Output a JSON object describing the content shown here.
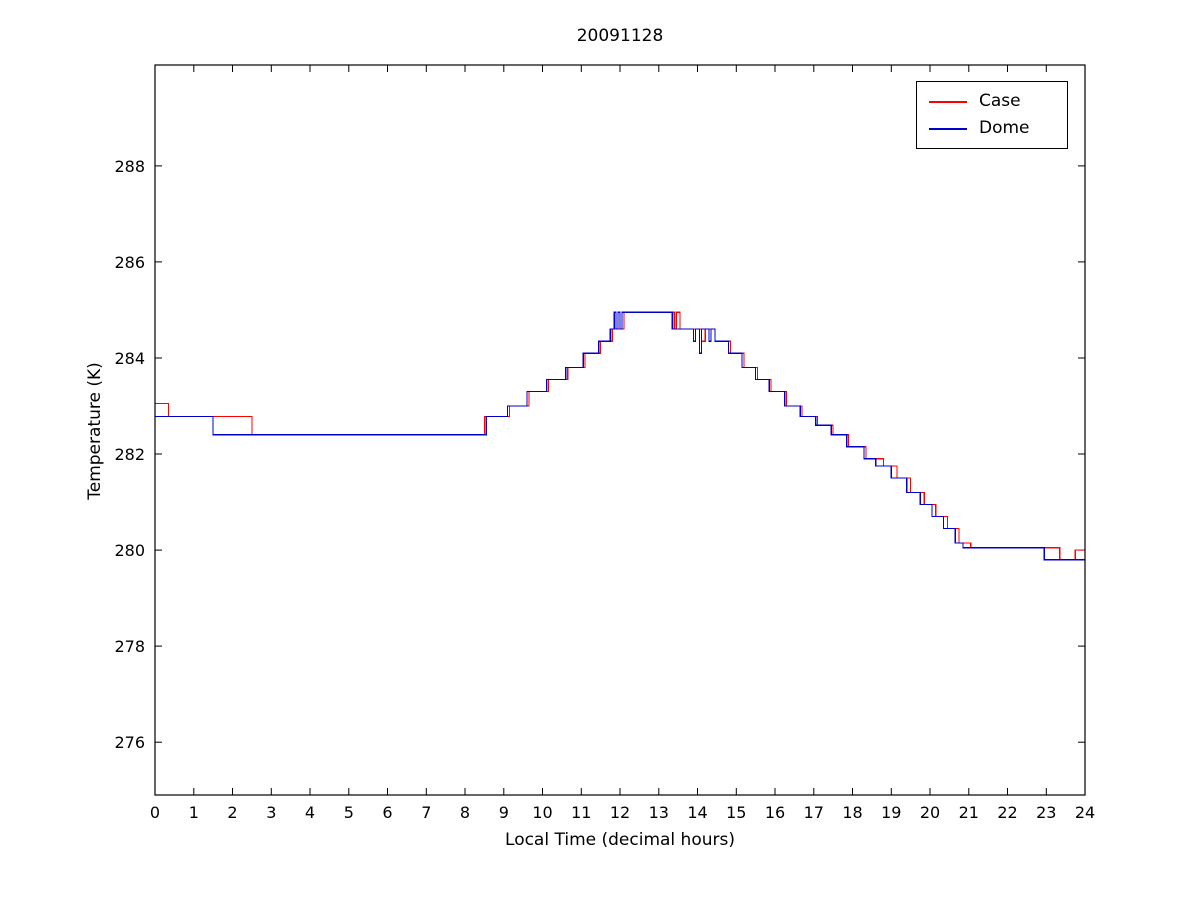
{
  "figure": {
    "title": "20091128",
    "xlabel": "Local Time (decimal hours)",
    "ylabel": "Temperature (K)",
    "background_color": "#ffffff",
    "axes_color": "#000000",
    "legend": [
      {
        "label": "Case",
        "color": "#ff0000"
      },
      {
        "label": "Dome",
        "color": "#0000cc"
      }
    ]
  },
  "chart_data": {
    "type": "line",
    "step": true,
    "title": "20091128",
    "xlabel": "Local Time (decimal hours)",
    "ylabel": "Temperature (K)",
    "xlim": [
      0,
      24
    ],
    "ylim": [
      274.9,
      290.1
    ],
    "xticks": [
      0,
      1,
      2,
      3,
      4,
      5,
      6,
      7,
      8,
      9,
      10,
      11,
      12,
      13,
      14,
      15,
      16,
      17,
      18,
      19,
      20,
      21,
      22,
      23,
      24
    ],
    "yticks": [
      276,
      278,
      280,
      282,
      284,
      286,
      288
    ],
    "grid": false,
    "legend_position": "top-right",
    "series": [
      {
        "name": "Case",
        "color": "#ff0000",
        "points": [
          [
            0,
            283.05
          ],
          [
            0.35,
            282.78
          ],
          [
            2.5,
            282.4
          ],
          [
            8.5,
            282.78
          ],
          [
            9.15,
            283.0
          ],
          [
            9.65,
            283.3
          ],
          [
            10.15,
            283.55
          ],
          [
            10.65,
            283.8
          ],
          [
            11.1,
            284.1
          ],
          [
            11.5,
            284.35
          ],
          [
            11.8,
            284.6
          ],
          [
            12.1,
            284.95
          ],
          [
            13.4,
            284.6
          ],
          [
            13.45,
            284.95
          ],
          [
            13.55,
            284.6
          ],
          [
            14.1,
            284.35
          ],
          [
            14.2,
            284.6
          ],
          [
            14.45,
            284.35
          ],
          [
            14.85,
            284.1
          ],
          [
            15.2,
            283.8
          ],
          [
            15.55,
            283.55
          ],
          [
            15.9,
            283.3
          ],
          [
            16.3,
            283.0
          ],
          [
            16.7,
            282.78
          ],
          [
            17.1,
            282.6
          ],
          [
            17.5,
            282.4
          ],
          [
            17.9,
            282.15
          ],
          [
            18.35,
            281.9
          ],
          [
            18.8,
            281.75
          ],
          [
            19.15,
            281.5
          ],
          [
            19.5,
            281.2
          ],
          [
            19.85,
            280.95
          ],
          [
            20.15,
            280.7
          ],
          [
            20.45,
            280.45
          ],
          [
            20.75,
            280.15
          ],
          [
            21.05,
            280.05
          ],
          [
            23.35,
            279.8
          ],
          [
            23.75,
            280.0
          ],
          [
            24,
            280.0
          ]
        ]
      },
      {
        "name": "Dome",
        "color": "#0000cc",
        "points": [
          [
            0,
            282.78
          ],
          [
            1.5,
            282.4
          ],
          [
            8.55,
            282.78
          ],
          [
            9.1,
            283.0
          ],
          [
            9.6,
            283.3
          ],
          [
            10.1,
            283.55
          ],
          [
            10.6,
            283.8
          ],
          [
            11.05,
            284.1
          ],
          [
            11.45,
            284.35
          ],
          [
            11.75,
            284.6
          ],
          [
            11.85,
            284.95
          ],
          [
            11.9,
            284.6
          ],
          [
            11.95,
            284.95
          ],
          [
            12.0,
            284.6
          ],
          [
            12.05,
            284.95
          ],
          [
            13.35,
            284.6
          ],
          [
            13.9,
            284.35
          ],
          [
            13.95,
            284.6
          ],
          [
            14.05,
            284.1
          ],
          [
            14.1,
            284.6
          ],
          [
            14.3,
            284.35
          ],
          [
            14.35,
            284.6
          ],
          [
            14.45,
            284.35
          ],
          [
            14.8,
            284.1
          ],
          [
            15.15,
            283.8
          ],
          [
            15.5,
            283.55
          ],
          [
            15.85,
            283.3
          ],
          [
            16.25,
            283.0
          ],
          [
            16.65,
            282.78
          ],
          [
            17.05,
            282.6
          ],
          [
            17.45,
            282.4
          ],
          [
            17.85,
            282.15
          ],
          [
            18.3,
            281.9
          ],
          [
            18.6,
            281.75
          ],
          [
            19.0,
            281.5
          ],
          [
            19.4,
            281.2
          ],
          [
            19.75,
            280.95
          ],
          [
            20.05,
            280.7
          ],
          [
            20.35,
            280.45
          ],
          [
            20.65,
            280.15
          ],
          [
            20.85,
            280.05
          ],
          [
            22.95,
            279.8
          ],
          [
            24,
            279.8
          ]
        ]
      }
    ]
  }
}
